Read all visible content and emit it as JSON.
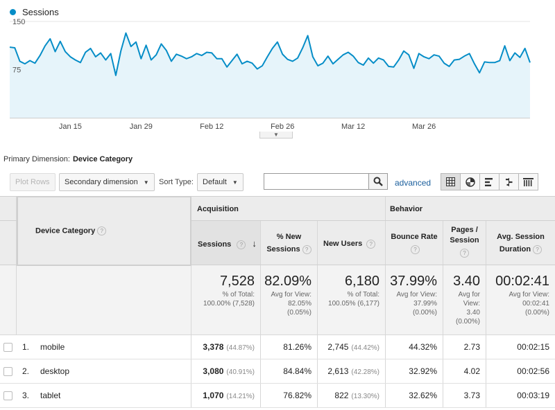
{
  "legend": {
    "label": "Sessions",
    "color": "#058dc7"
  },
  "chart_data": {
    "type": "area",
    "series": [
      {
        "name": "Sessions",
        "values": [
          110,
          109,
          88,
          84,
          89,
          85,
          97,
          112,
          123,
          103,
          119,
          103,
          95,
          90,
          86,
          102,
          108,
          95,
          101,
          90,
          100,
          66,
          104,
          132,
          111,
          118,
          92,
          113,
          90,
          98,
          115,
          105,
          88,
          99,
          96,
          92,
          95,
          100,
          97,
          102,
          101,
          92,
          92,
          79,
          89,
          99,
          84,
          88,
          85,
          76,
          81,
          95,
          108,
          118,
          99,
          91,
          88,
          93,
          109,
          128,
          95,
          81,
          85,
          96,
          84,
          91,
          98,
          102,
          96,
          86,
          82,
          93,
          85,
          93,
          90,
          80,
          79,
          90,
          104,
          98,
          77,
          100,
          95,
          92,
          98,
          96,
          85,
          80,
          90,
          91,
          96,
          100,
          84,
          70,
          87,
          86,
          86,
          89,
          112,
          89,
          101,
          94,
          108,
          86
        ]
      }
    ],
    "x_tick_labels": [
      "Jan 15",
      "Jan 29",
      "Feb 12",
      "Feb 26",
      "Mar 12",
      "Mar 26"
    ],
    "y_tick_labels": [
      "150",
      "75"
    ],
    "ylim": [
      0,
      150
    ],
    "grid": true,
    "legend": "top-left"
  },
  "primary_dimension": {
    "label": "Primary Dimension:",
    "value": "Device Category"
  },
  "toolbar": {
    "plot_rows": "Plot Rows",
    "secondary_dimension": "Secondary dimension",
    "sort_type_label": "Sort Type:",
    "sort_type_value": "Default",
    "search_placeholder": "",
    "advanced": "advanced"
  },
  "table": {
    "groups": {
      "acquisition": "Acquisition",
      "behavior": "Behavior"
    },
    "headers": {
      "device_category": "Device Category",
      "sessions": "Sessions",
      "new_sessions_1": "% New",
      "new_sessions_2": "Sessions",
      "new_users": "New Users",
      "bounce_rate": "Bounce Rate",
      "pages_1": "Pages /",
      "pages_2": "Session",
      "avg_1": "Avg. Session",
      "avg_2": "Duration"
    },
    "totals": {
      "sessions": "7,528",
      "sessions_sub1": "% of Total:",
      "sessions_sub2": "100.00% (7,528)",
      "new_sessions": "82.09%",
      "new_sessions_sub1": "Avg for View:",
      "new_sessions_sub2": "82.05%",
      "new_sessions_sub3": "(0.05%)",
      "new_users": "6,180",
      "new_users_sub1": "% of Total:",
      "new_users_sub2": "100.05% (6,177)",
      "bounce_rate": "37.99%",
      "bounce_rate_sub1": "Avg for View:",
      "bounce_rate_sub2": "37.99%",
      "bounce_rate_sub3": "(0.00%)",
      "pages": "3.40",
      "pages_sub1": "Avg for",
      "pages_sub2": "View:",
      "pages_sub3": "3.40",
      "pages_sub4": "(0.00%)",
      "avg_dur": "00:02:41",
      "avg_dur_sub1": "Avg for View:",
      "avg_dur_sub2": "00:02:41",
      "avg_dur_sub3": "(0.00%)"
    },
    "rows": [
      {
        "index": "1.",
        "device": "mobile",
        "sessions": "3,378",
        "sessions_pct": "(44.87%)",
        "new_sessions": "81.26%",
        "new_users": "2,745",
        "new_users_pct": "(44.42%)",
        "bounce_rate": "44.32%",
        "pages": "2.73",
        "avg_dur": "00:02:15"
      },
      {
        "index": "2.",
        "device": "desktop",
        "sessions": "3,080",
        "sessions_pct": "(40.91%)",
        "new_sessions": "84.84%",
        "new_users": "2,613",
        "new_users_pct": "(42.28%)",
        "bounce_rate": "32.92%",
        "pages": "4.02",
        "avg_dur": "00:02:56"
      },
      {
        "index": "3.",
        "device": "tablet",
        "sessions": "1,070",
        "sessions_pct": "(14.21%)",
        "new_sessions": "76.82%",
        "new_users": "822",
        "new_users_pct": "(13.30%)",
        "bounce_rate": "32.62%",
        "pages": "3.73",
        "avg_dur": "00:03:19"
      }
    ]
  }
}
